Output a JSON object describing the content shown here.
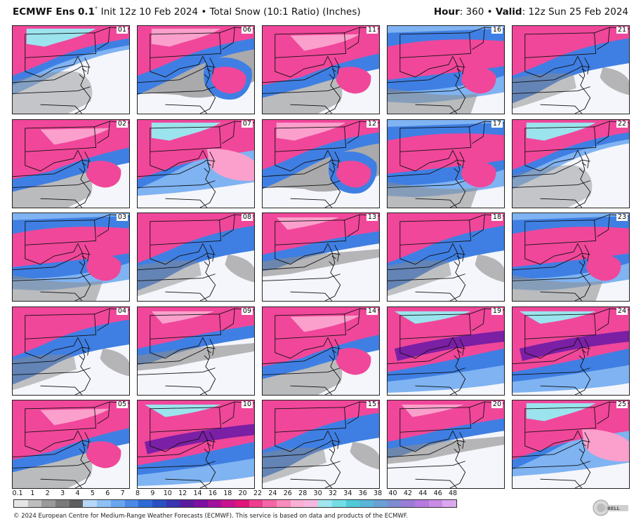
{
  "header": {
    "model": "ECMWF Ens 0.1",
    "degree": "°",
    "info": "Init 12z 10 Feb 2024 • Total Snow (10:1 Ratio) (Inches)",
    "hour_label": "Hour",
    "hour_value": ": 360 • ",
    "valid_label": "Valid",
    "valid_value": ": 12z Sun 25 Feb 2024"
  },
  "panels": [
    {
      "label": "01",
      "pattern": 0
    },
    {
      "label": "06",
      "pattern": 1
    },
    {
      "label": "11",
      "pattern": 2
    },
    {
      "label": "16",
      "pattern": 3
    },
    {
      "label": "21",
      "pattern": 4
    },
    {
      "label": "02",
      "pattern": 2
    },
    {
      "label": "07",
      "pattern": 5
    },
    {
      "label": "12",
      "pattern": 1
    },
    {
      "label": "17",
      "pattern": 3
    },
    {
      "label": "22",
      "pattern": 0
    },
    {
      "label": "03",
      "pattern": 3
    },
    {
      "label": "08",
      "pattern": 4
    },
    {
      "label": "13",
      "pattern": 6
    },
    {
      "label": "18",
      "pattern": 4
    },
    {
      "label": "23",
      "pattern": 3
    },
    {
      "label": "04",
      "pattern": 4
    },
    {
      "label": "09",
      "pattern": 6
    },
    {
      "label": "14",
      "pattern": 2
    },
    {
      "label": "19",
      "pattern": 7
    },
    {
      "label": "24",
      "pattern": 7
    },
    {
      "label": "05",
      "pattern": 2
    },
    {
      "label": "10",
      "pattern": 7
    },
    {
      "label": "15",
      "pattern": 4
    },
    {
      "label": "20",
      "pattern": 6
    },
    {
      "label": "25",
      "pattern": 5
    }
  ],
  "colorbar": {
    "ticks": [
      "0.1",
      "1",
      "2",
      "3",
      "4",
      "5",
      "6",
      "7",
      "8",
      "9",
      "10",
      "12",
      "14",
      "16",
      "18",
      "20",
      "22",
      "24",
      "26",
      "28",
      "30",
      "32",
      "34",
      "36",
      "38",
      "40",
      "42",
      "44",
      "46",
      "48"
    ],
    "colors": [
      "#e6e6e6",
      "#bdbdbd",
      "#9a9a9a",
      "#7a7a7a",
      "#5e5e5e",
      "#b7d7f6",
      "#8ec0f3",
      "#6aa6ef",
      "#4a89e6",
      "#2f6bd6",
      "#2a4fc2",
      "#3a35b0",
      "#5a1aa0",
      "#7d10a0",
      "#a2119e",
      "#c8128f",
      "#e0157c",
      "#ef3d8f",
      "#f566a6",
      "#f98bbd",
      "#fbb0d3",
      "#f5b8e0",
      "#9fe6ef",
      "#72dde6",
      "#4fcbd8",
      "#5ab6d8",
      "#6aa0d6",
      "#7f8bd2",
      "#9b7bd6",
      "#b679e0",
      "#c98be6",
      "#dba7ee"
    ]
  },
  "footer": "© 2024 European Centre for Medium-Range Weather Forecasts (ECMWF). This service is based on data and products of the ECMWF.",
  "logo_text": "WeatherBELL"
}
